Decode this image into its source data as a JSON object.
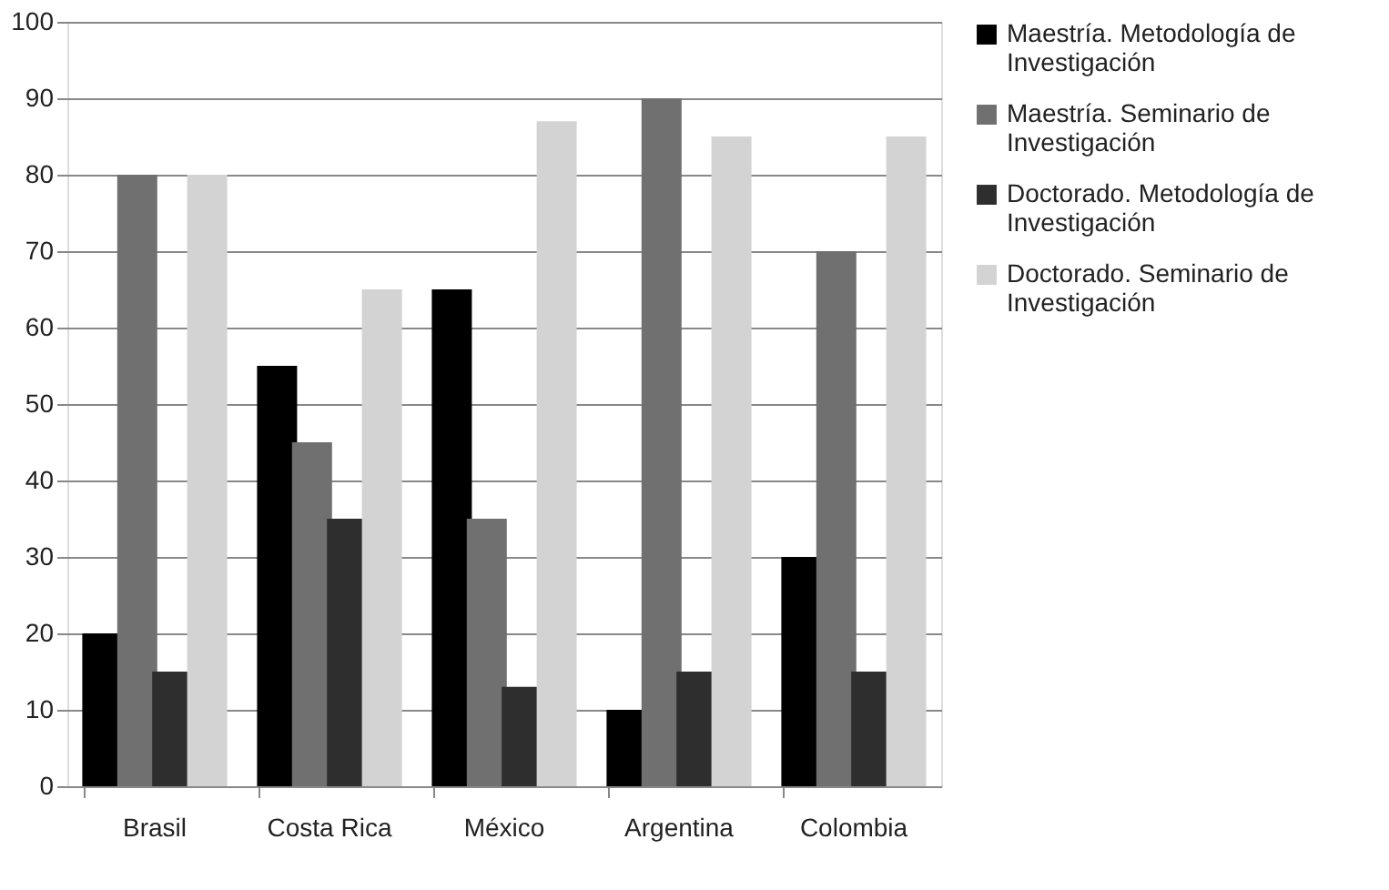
{
  "chart_data": {
    "type": "bar",
    "categories": [
      "Brasil",
      "Costa Rica",
      "México",
      "Argentina",
      "Colombia"
    ],
    "series": [
      {
        "name": "Maestría. Metodología de Investigación",
        "color": "#000000",
        "values": [
          20,
          55,
          65,
          10,
          30
        ]
      },
      {
        "name": "Maestría. Seminario de Investigación",
        "color": "#707070",
        "values": [
          80,
          45,
          35,
          90,
          70
        ]
      },
      {
        "name": "Doctorado. Metodología de Investigación",
        "color": "#2e2e2e",
        "values": [
          15,
          35,
          13,
          15,
          15
        ]
      },
      {
        "name": "Doctorado. Seminario de Investigación",
        "color": "#d3d3d3",
        "values": [
          80,
          65,
          87,
          85,
          85
        ]
      }
    ],
    "ylim": [
      0,
      100
    ],
    "yticks": [
      0,
      10,
      20,
      30,
      40,
      50,
      60,
      70,
      80,
      90,
      100
    ],
    "grid": "y",
    "legend": "right"
  }
}
